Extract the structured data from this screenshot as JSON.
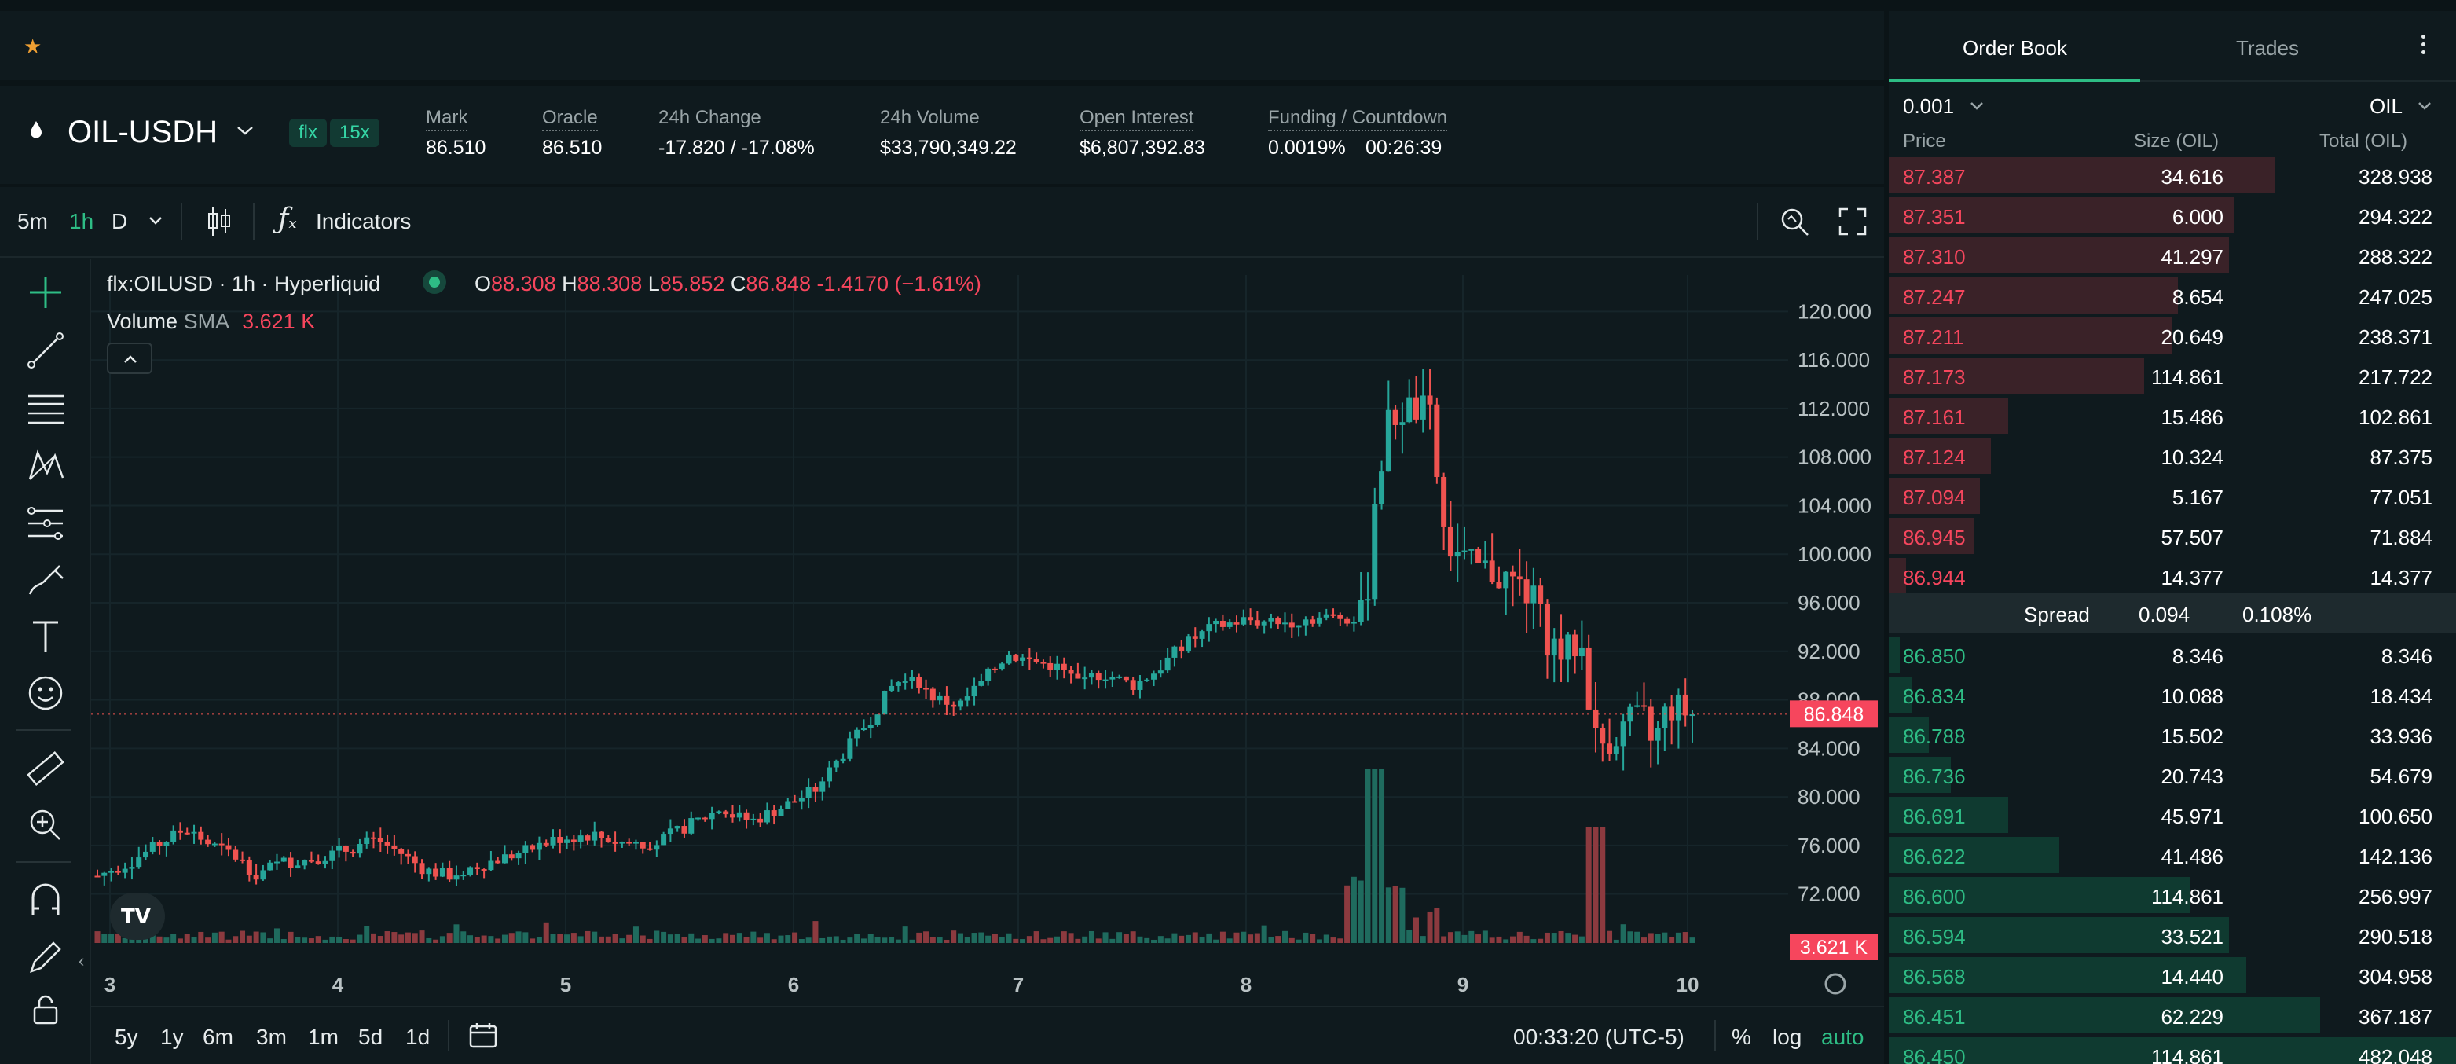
{
  "favorites": {
    "star_icon": "star-icon"
  },
  "header": {
    "pair": "OIL-USDH",
    "tags": [
      "flx",
      "15x"
    ],
    "stats": [
      {
        "label": "Mark",
        "value": "86.510",
        "color": "#ffffff"
      },
      {
        "label": "Oracle",
        "value": "86.510",
        "color": "#ffffff"
      },
      {
        "label": "24h Change",
        "value": "-17.820 / -17.08%",
        "color": "#f6465d"
      },
      {
        "label": "24h Volume",
        "value": "$33,790,349.22",
        "color": "#ffffff"
      },
      {
        "label": "Open Interest",
        "value": "$6,807,392.83",
        "color": "#ffffff"
      },
      {
        "label": "Funding / Countdown",
        "value": "0.0019%",
        "value2": "00:26:39",
        "color": "#2ebd85"
      }
    ]
  },
  "toolbar": {
    "timeframes": [
      "5m",
      "1h",
      "D"
    ],
    "active_timeframe": "1h",
    "indicators_label": "Indicators"
  },
  "legend": {
    "symbol": "flx:OILUSD · 1h · Hyperliquid",
    "o_label": "O",
    "o": "88.308",
    "h_label": "H",
    "h": "88.308",
    "l_label": "L",
    "l": "85.852",
    "c_label": "C",
    "c": "86.848",
    "change": "-1.4170 (−1.61%)",
    "volume_label": "Volume",
    "sma_label": "SMA",
    "volume_value": "3.621 K"
  },
  "chart_data": {
    "type": "candlestick",
    "y_ticks": [
      "120.000",
      "116.000",
      "112.000",
      "108.000",
      "104.000",
      "100.000",
      "96.000",
      "92.000",
      "88.000",
      "84.000",
      "80.000",
      "76.000",
      "72.000"
    ],
    "y_tick_values": [
      120,
      116,
      112,
      108,
      104,
      100,
      96,
      92,
      88,
      84,
      80,
      76,
      72
    ],
    "x_ticks": [
      "3",
      "4",
      "5",
      "6",
      "7",
      "8",
      "9",
      "10"
    ],
    "ylim": [
      69,
      123
    ],
    "last_price": "86.848",
    "last_price_value": 86.848,
    "volume_badge": "3.621 K",
    "close_path": [
      [
        0,
        73.5
      ],
      [
        0.02,
        74.6
      ],
      [
        0.04,
        76.2
      ],
      [
        0.055,
        77.4
      ],
      [
        0.07,
        76.1
      ],
      [
        0.085,
        75.2
      ],
      [
        0.1,
        73.6
      ],
      [
        0.115,
        74.6
      ],
      [
        0.13,
        74.8
      ],
      [
        0.145,
        75.2
      ],
      [
        0.16,
        75.8
      ],
      [
        0.175,
        76.5
      ],
      [
        0.19,
        75.4
      ],
      [
        0.205,
        74.0
      ],
      [
        0.22,
        73.5
      ],
      [
        0.235,
        74.2
      ],
      [
        0.25,
        74.8
      ],
      [
        0.27,
        75.6
      ],
      [
        0.29,
        76.6
      ],
      [
        0.31,
        76.9
      ],
      [
        0.33,
        76.2
      ],
      [
        0.35,
        76.2
      ],
      [
        0.37,
        77.6
      ],
      [
        0.39,
        79.0
      ],
      [
        0.4,
        78.4
      ],
      [
        0.41,
        78.0
      ],
      [
        0.43,
        79.2
      ],
      [
        0.45,
        80.6
      ],
      [
        0.47,
        84.0
      ],
      [
        0.485,
        86.5
      ],
      [
        0.5,
        89.5
      ],
      [
        0.515,
        89.4
      ],
      [
        0.525,
        88.1
      ],
      [
        0.54,
        87.5
      ],
      [
        0.555,
        89.5
      ],
      [
        0.57,
        91.8
      ],
      [
        0.585,
        91.2
      ],
      [
        0.6,
        90.8
      ],
      [
        0.615,
        89.5
      ],
      [
        0.63,
        90.2
      ],
      [
        0.65,
        89.2
      ],
      [
        0.665,
        90.5
      ],
      [
        0.68,
        92.5
      ],
      [
        0.7,
        94.0
      ],
      [
        0.72,
        94.6
      ],
      [
        0.74,
        94.3
      ],
      [
        0.76,
        94.7
      ],
      [
        0.78,
        94.8
      ],
      [
        0.795,
        94.8
      ],
      [
        0.8,
        104.0
      ],
      [
        0.81,
        111.0
      ],
      [
        0.82,
        112.0
      ],
      [
        0.835,
        111.6
      ],
      [
        0.845,
        101.0
      ],
      [
        0.86,
        99.0
      ],
      [
        0.875,
        98.5
      ],
      [
        0.89,
        97.5
      ],
      [
        0.9,
        96.2
      ],
      [
        0.91,
        92.8
      ],
      [
        0.92,
        91.8
      ],
      [
        0.93,
        92.8
      ],
      [
        0.94,
        84.2
      ],
      [
        0.95,
        85.0
      ],
      [
        0.96,
        86.0
      ],
      [
        0.97,
        86.2
      ],
      [
        0.975,
        84.2
      ],
      [
        0.985,
        87.5
      ],
      [
        1.0,
        86.8
      ]
    ]
  },
  "bottom_bar": {
    "ranges": [
      "5y",
      "1y",
      "6m",
      "3m",
      "1m",
      "5d",
      "1d"
    ],
    "time": "00:33:20 (UTC-5)",
    "pct": "%",
    "log": "log",
    "auto": "auto"
  },
  "order_book": {
    "tabs": [
      "Order Book",
      "Trades"
    ],
    "tick_size": "0.001",
    "unit": "OIL",
    "columns": [
      "Price",
      "Size (OIL)",
      "Total (OIL)"
    ],
    "asks": [
      {
        "price": "87.387",
        "size": "34.616",
        "total": "328.938",
        "depth": 0.68
      },
      {
        "price": "87.351",
        "size": "6.000",
        "total": "294.322",
        "depth": 0.61
      },
      {
        "price": "87.310",
        "size": "41.297",
        "total": "288.322",
        "depth": 0.6
      },
      {
        "price": "87.247",
        "size": "8.654",
        "total": "247.025",
        "depth": 0.51
      },
      {
        "price": "87.211",
        "size": "20.649",
        "total": "238.371",
        "depth": 0.5
      },
      {
        "price": "87.173",
        "size": "114.861",
        "total": "217.722",
        "depth": 0.45
      },
      {
        "price": "87.161",
        "size": "15.486",
        "total": "102.861",
        "depth": 0.21
      },
      {
        "price": "87.124",
        "size": "10.324",
        "total": "87.375",
        "depth": 0.18
      },
      {
        "price": "87.094",
        "size": "5.167",
        "total": "77.051",
        "depth": 0.16
      },
      {
        "price": "86.945",
        "size": "57.507",
        "total": "71.884",
        "depth": 0.15
      },
      {
        "price": "86.944",
        "size": "14.377",
        "total": "14.377",
        "depth": 0.03
      }
    ],
    "spread_label": "Spread",
    "spread_value": "0.094",
    "spread_pct": "0.108%",
    "bids": [
      {
        "price": "86.850",
        "size": "8.346",
        "total": "8.346",
        "depth": 0.02
      },
      {
        "price": "86.834",
        "size": "10.088",
        "total": "18.434",
        "depth": 0.04
      },
      {
        "price": "86.788",
        "size": "15.502",
        "total": "33.936",
        "depth": 0.07
      },
      {
        "price": "86.736",
        "size": "20.743",
        "total": "54.679",
        "depth": 0.11
      },
      {
        "price": "86.691",
        "size": "45.971",
        "total": "100.650",
        "depth": 0.21
      },
      {
        "price": "86.622",
        "size": "41.486",
        "total": "142.136",
        "depth": 0.3
      },
      {
        "price": "86.600",
        "size": "114.861",
        "total": "256.997",
        "depth": 0.53
      },
      {
        "price": "86.594",
        "size": "33.521",
        "total": "290.518",
        "depth": 0.6
      },
      {
        "price": "86.568",
        "size": "14.440",
        "total": "304.958",
        "depth": 0.63
      },
      {
        "price": "86.451",
        "size": "62.229",
        "total": "367.187",
        "depth": 0.76
      },
      {
        "price": "86.450",
        "size": "114.861",
        "total": "482.048",
        "depth": 1.0
      }
    ]
  },
  "colors": {
    "up": "#26a69a",
    "down": "#ef5350",
    "accent": "#2ebd85",
    "ask_bar": "#3a2228",
    "bid_bar": "#0f3a30"
  }
}
